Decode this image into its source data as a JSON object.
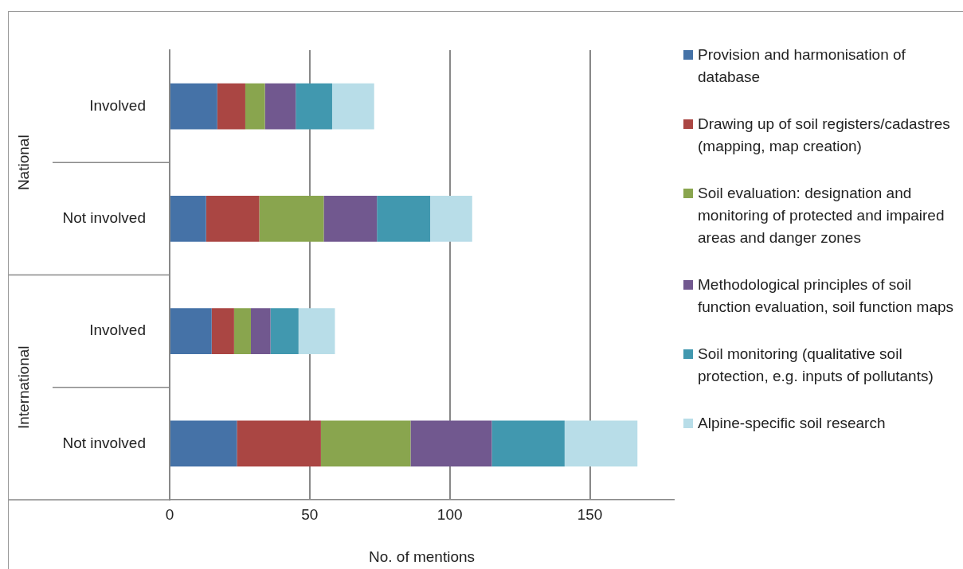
{
  "chart_data": {
    "type": "bar",
    "orientation": "horizontal",
    "stacked": true,
    "xlabel": "No. of mentions",
    "categories": [
      "Involved",
      "Not involved",
      "Involved",
      "Not involved"
    ],
    "annotations": [
      "National",
      "International"
    ],
    "series": [
      {
        "name": "Provision and harmonisation of database",
        "color": "#4572a7",
        "values": [
          17,
          13,
          15,
          24
        ]
      },
      {
        "name": "Drawing up of soil registers/cadastres (mapping, map creation)",
        "color": "#aa4643",
        "values": [
          10,
          19,
          8,
          30
        ]
      },
      {
        "name": "Soil evaluation: designation and monitoring of protected and impaired areas and danger zones",
        "color": "#89a54e",
        "values": [
          7,
          23,
          6,
          32
        ]
      },
      {
        "name": "Methodological principles of soil function evaluation, soil function maps",
        "color": "#71588f",
        "values": [
          11,
          19,
          7,
          29
        ]
      },
      {
        "name": "Soil monitoring (qualitative soil protection, e.g. inputs of pollutants)",
        "color": "#4198af",
        "values": [
          13,
          19,
          10,
          26
        ]
      },
      {
        "name": "Alpine-specific soil research",
        "color": "#b8dde8",
        "values": [
          15,
          15,
          13,
          26
        ]
      }
    ],
    "xlim": [
      0,
      180
    ],
    "xticks": [
      0,
      50,
      100,
      150
    ],
    "grid": "x",
    "legend": "right"
  }
}
